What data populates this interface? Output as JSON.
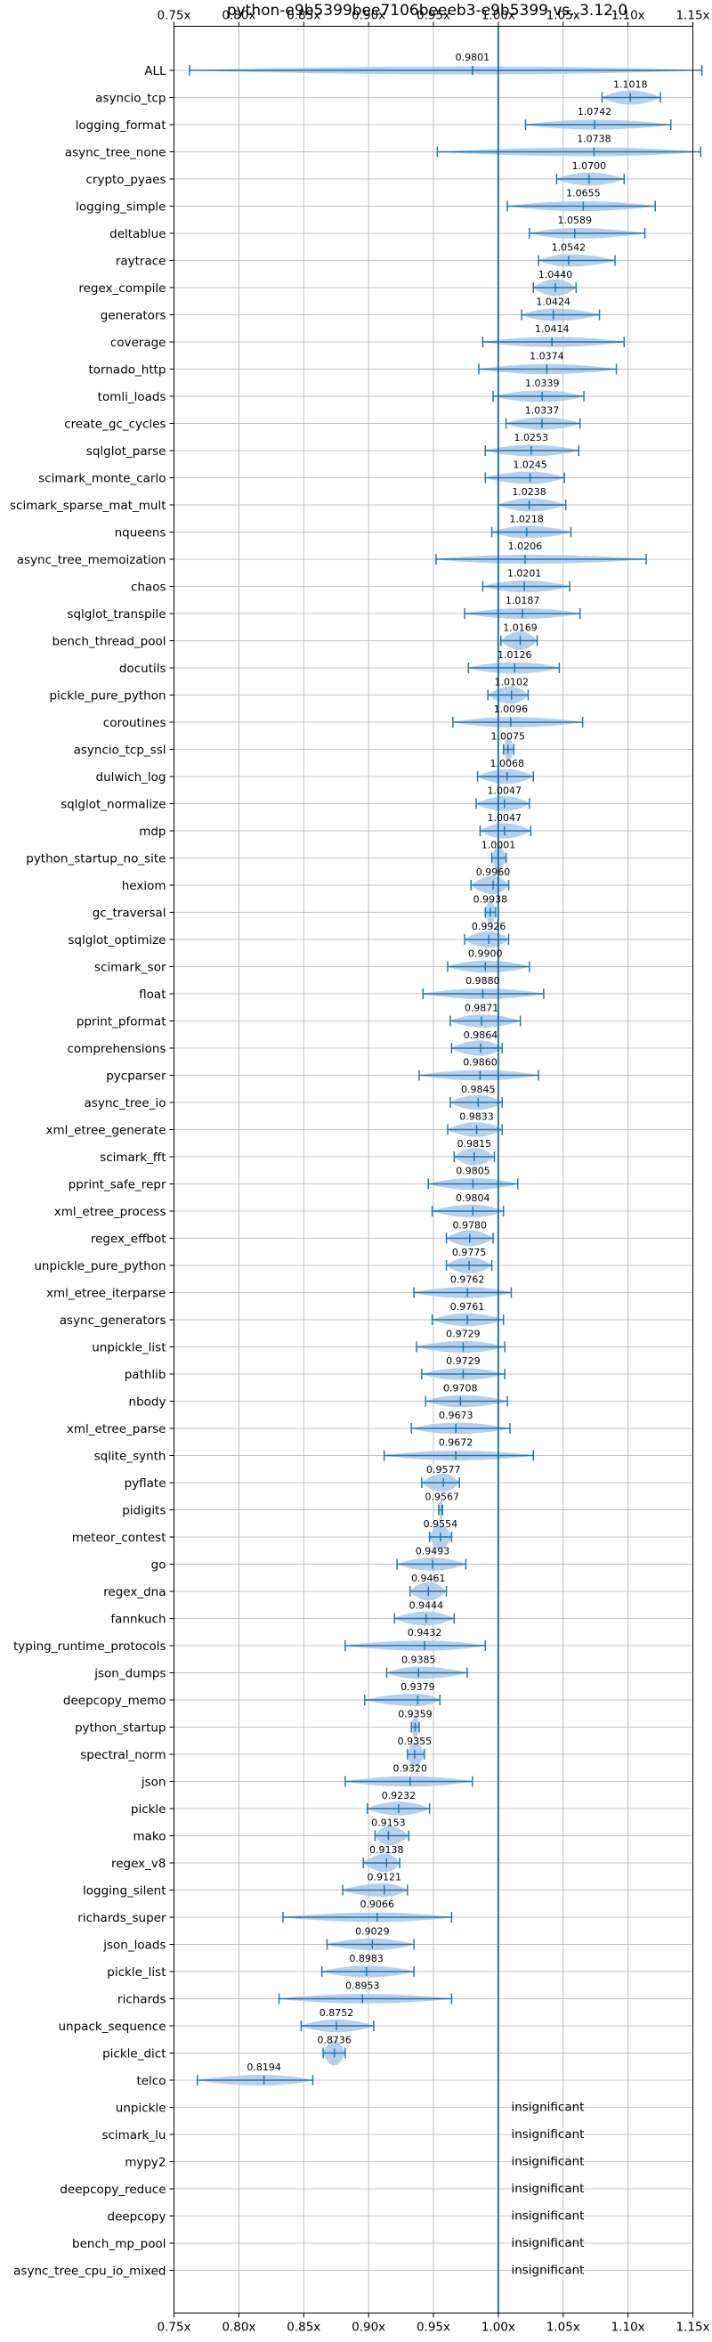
{
  "chart_data": {
    "type": "violin",
    "title": "python-e9b5399bee7106beeeb3-e9b5399 vs. 3.12.0",
    "xlim": [
      0.75,
      1.15
    ],
    "xticks": [
      "0.75x",
      "0.80x",
      "0.85x",
      "0.90x",
      "0.95x",
      "1.00x",
      "1.05x",
      "1.10x",
      "1.15x"
    ],
    "reference_line": 1.0,
    "grid": true,
    "colors": {
      "violin": "#a9c8e8",
      "line": "#1f77b4"
    },
    "insignificant_label": "insignificant",
    "benchmarks": [
      {
        "name": "ALL",
        "value": 0.9801,
        "min": 0.762,
        "max": 1.157
      },
      {
        "name": "asyncio_tcp",
        "value": 1.1018,
        "min": 1.08,
        "max": 1.125
      },
      {
        "name": "logging_format",
        "value": 1.0742,
        "min": 1.021,
        "max": 1.133
      },
      {
        "name": "async_tree_none",
        "value": 1.0738,
        "min": 0.953,
        "max": 1.156
      },
      {
        "name": "crypto_pyaes",
        "value": 1.07,
        "min": 1.045,
        "max": 1.097
      },
      {
        "name": "logging_simple",
        "value": 1.0655,
        "min": 1.007,
        "max": 1.121
      },
      {
        "name": "deltablue",
        "value": 1.0589,
        "min": 1.024,
        "max": 1.113
      },
      {
        "name": "raytrace",
        "value": 1.0542,
        "min": 1.031,
        "max": 1.09
      },
      {
        "name": "regex_compile",
        "value": 1.044,
        "min": 1.027,
        "max": 1.06
      },
      {
        "name": "generators",
        "value": 1.0424,
        "min": 1.018,
        "max": 1.078
      },
      {
        "name": "coverage",
        "value": 1.0414,
        "min": 0.988,
        "max": 1.097
      },
      {
        "name": "tornado_http",
        "value": 1.0374,
        "min": 0.985,
        "max": 1.091
      },
      {
        "name": "tomli_loads",
        "value": 1.0339,
        "min": 0.996,
        "max": 1.066
      },
      {
        "name": "create_gc_cycles",
        "value": 1.0337,
        "min": 1.006,
        "max": 1.063
      },
      {
        "name": "sqlglot_parse",
        "value": 1.0253,
        "min": 0.99,
        "max": 1.062
      },
      {
        "name": "scimark_monte_carlo",
        "value": 1.0245,
        "min": 0.99,
        "max": 1.051
      },
      {
        "name": "scimark_sparse_mat_mult",
        "value": 1.0238,
        "min": 1.0,
        "max": 1.052
      },
      {
        "name": "nqueens",
        "value": 1.0218,
        "min": 0.995,
        "max": 1.056
      },
      {
        "name": "async_tree_memoization",
        "value": 1.0206,
        "min": 0.952,
        "max": 1.114
      },
      {
        "name": "chaos",
        "value": 1.0201,
        "min": 0.988,
        "max": 1.055
      },
      {
        "name": "sqlglot_transpile",
        "value": 1.0187,
        "min": 0.974,
        "max": 1.063
      },
      {
        "name": "bench_thread_pool",
        "value": 1.0169,
        "min": 1.002,
        "max": 1.03
      },
      {
        "name": "docutils",
        "value": 1.0126,
        "min": 0.977,
        "max": 1.047
      },
      {
        "name": "pickle_pure_python",
        "value": 1.0102,
        "min": 0.992,
        "max": 1.023
      },
      {
        "name": "coroutines",
        "value": 1.0096,
        "min": 0.965,
        "max": 1.065
      },
      {
        "name": "asyncio_tcp_ssl",
        "value": 1.0075,
        "min": 1.004,
        "max": 1.012
      },
      {
        "name": "dulwich_log",
        "value": 1.0068,
        "min": 0.984,
        "max": 1.027
      },
      {
        "name": "sqlglot_normalize",
        "value": 1.0047,
        "min": 0.983,
        "max": 1.024
      },
      {
        "name": "mdp",
        "value": 1.0047,
        "min": 0.986,
        "max": 1.025
      },
      {
        "name": "python_startup_no_site",
        "value": 1.0001,
        "min": 0.995,
        "max": 1.006
      },
      {
        "name": "hexiom",
        "value": 0.996,
        "min": 0.979,
        "max": 1.008
      },
      {
        "name": "gc_traversal",
        "value": 0.9938,
        "min": 0.99,
        "max": 0.998
      },
      {
        "name": "sqlglot_optimize",
        "value": 0.9926,
        "min": 0.974,
        "max": 1.008
      },
      {
        "name": "scimark_sor",
        "value": 0.99,
        "min": 0.961,
        "max": 1.024
      },
      {
        "name": "float",
        "value": 0.988,
        "min": 0.942,
        "max": 1.035
      },
      {
        "name": "pprint_pformat",
        "value": 0.9871,
        "min": 0.963,
        "max": 1.017
      },
      {
        "name": "comprehensions",
        "value": 0.9864,
        "min": 0.964,
        "max": 1.003
      },
      {
        "name": "pycparser",
        "value": 0.986,
        "min": 0.939,
        "max": 1.031
      },
      {
        "name": "async_tree_io",
        "value": 0.9845,
        "min": 0.963,
        "max": 1.003
      },
      {
        "name": "xml_etree_generate",
        "value": 0.9833,
        "min": 0.961,
        "max": 1.003
      },
      {
        "name": "scimark_fft",
        "value": 0.9815,
        "min": 0.966,
        "max": 0.997
      },
      {
        "name": "pprint_safe_repr",
        "value": 0.9805,
        "min": 0.946,
        "max": 1.015
      },
      {
        "name": "xml_etree_process",
        "value": 0.9804,
        "min": 0.949,
        "max": 1.004
      },
      {
        "name": "regex_effbot",
        "value": 0.978,
        "min": 0.96,
        "max": 0.996
      },
      {
        "name": "unpickle_pure_python",
        "value": 0.9775,
        "min": 0.96,
        "max": 0.995
      },
      {
        "name": "xml_etree_iterparse",
        "value": 0.9762,
        "min": 0.935,
        "max": 1.01
      },
      {
        "name": "async_generators",
        "value": 0.9761,
        "min": 0.949,
        "max": 1.004
      },
      {
        "name": "unpickle_list",
        "value": 0.9729,
        "min": 0.937,
        "max": 1.005
      },
      {
        "name": "pathlib",
        "value": 0.9729,
        "min": 0.941,
        "max": 1.005
      },
      {
        "name": "nbody",
        "value": 0.9708,
        "min": 0.944,
        "max": 1.007
      },
      {
        "name": "xml_etree_parse",
        "value": 0.9673,
        "min": 0.933,
        "max": 1.009
      },
      {
        "name": "sqlite_synth",
        "value": 0.9672,
        "min": 0.912,
        "max": 1.027
      },
      {
        "name": "pyflate",
        "value": 0.9577,
        "min": 0.941,
        "max": 0.97
      },
      {
        "name": "pidigits",
        "value": 0.9567,
        "min": 0.954,
        "max": 0.957
      },
      {
        "name": "meteor_contest",
        "value": 0.9554,
        "min": 0.947,
        "max": 0.964
      },
      {
        "name": "go",
        "value": 0.9493,
        "min": 0.922,
        "max": 0.975
      },
      {
        "name": "regex_dna",
        "value": 0.9461,
        "min": 0.932,
        "max": 0.96
      },
      {
        "name": "fannkuch",
        "value": 0.9444,
        "min": 0.92,
        "max": 0.966
      },
      {
        "name": "typing_runtime_protocols",
        "value": 0.9432,
        "min": 0.882,
        "max": 0.99
      },
      {
        "name": "json_dumps",
        "value": 0.9385,
        "min": 0.914,
        "max": 0.976
      },
      {
        "name": "deepcopy_memo",
        "value": 0.9379,
        "min": 0.897,
        "max": 0.955
      },
      {
        "name": "python_startup",
        "value": 0.9359,
        "min": 0.933,
        "max": 0.939
      },
      {
        "name": "spectral_norm",
        "value": 0.9355,
        "min": 0.93,
        "max": 0.943
      },
      {
        "name": "json",
        "value": 0.932,
        "min": 0.882,
        "max": 0.98
      },
      {
        "name": "pickle",
        "value": 0.9232,
        "min": 0.899,
        "max": 0.947
      },
      {
        "name": "mako",
        "value": 0.9153,
        "min": 0.905,
        "max": 0.931
      },
      {
        "name": "regex_v8",
        "value": 0.9138,
        "min": 0.896,
        "max": 0.924
      },
      {
        "name": "logging_silent",
        "value": 0.9121,
        "min": 0.88,
        "max": 0.93
      },
      {
        "name": "richards_super",
        "value": 0.9066,
        "min": 0.834,
        "max": 0.964
      },
      {
        "name": "json_loads",
        "value": 0.9029,
        "min": 0.868,
        "max": 0.935
      },
      {
        "name": "pickle_list",
        "value": 0.8983,
        "min": 0.864,
        "max": 0.935
      },
      {
        "name": "richards",
        "value": 0.8953,
        "min": 0.831,
        "max": 0.964
      },
      {
        "name": "unpack_sequence",
        "value": 0.8752,
        "min": 0.848,
        "max": 0.904
      },
      {
        "name": "pickle_dict",
        "value": 0.8736,
        "min": 0.865,
        "max": 0.882
      },
      {
        "name": "telco",
        "value": 0.8194,
        "min": 0.768,
        "max": 0.857
      },
      {
        "name": "unpickle",
        "value": null
      },
      {
        "name": "scimark_lu",
        "value": null
      },
      {
        "name": "mypy2",
        "value": null
      },
      {
        "name": "deepcopy_reduce",
        "value": null
      },
      {
        "name": "deepcopy",
        "value": null
      },
      {
        "name": "bench_mp_pool",
        "value": null
      },
      {
        "name": "async_tree_cpu_io_mixed",
        "value": null
      }
    ]
  }
}
